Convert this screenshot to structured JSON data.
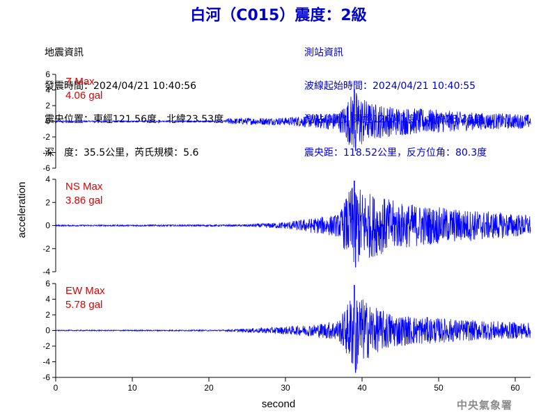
{
  "title": "白河（C015）震度：2級",
  "quake_info": {
    "heading": "地震資訊",
    "origin_time": "發震時間：2024/04/21 10:40:56",
    "epicenter": "震央位置：東經121.56度，北緯23.53度",
    "depth_magnitude": "深　度：35.5公里，芮氏規模：5.6"
  },
  "station_info": {
    "heading": "測站資訊",
    "arrival_time": "波線起始時間：2024/04/21 10:40:55",
    "station_location": "測站位置：東經120.41度，北緯23.35度",
    "distance_azimuth": "震央距：118.52公里，反方位角：80.3度"
  },
  "agency": "中央氣象署",
  "chart_data": {
    "type": "line",
    "xlabel": "second",
    "ylabel": "acceleration",
    "xlim": [
      0,
      62
    ],
    "x_ticks": [
      0,
      10,
      20,
      30,
      40,
      50,
      60
    ],
    "line_color": "#0000ff",
    "label_color": "#dd0000",
    "panels": [
      {
        "component": "Z",
        "label": "Z Max",
        "max_text": "4.06 gal",
        "max": 4.06,
        "ylim": [
          -6,
          6
        ],
        "y_ticks": [
          6,
          4,
          2,
          0,
          -2,
          -4,
          -6
        ],
        "envelope": [
          [
            0,
            0.08
          ],
          [
            22,
            0.08
          ],
          [
            22.5,
            0.4
          ],
          [
            30,
            0.5
          ],
          [
            34,
            0.9
          ],
          [
            37,
            1.2
          ],
          [
            38,
            2.6
          ],
          [
            39,
            4.06
          ],
          [
            40,
            3.2
          ],
          [
            41,
            2.4
          ],
          [
            44,
            1.9
          ],
          [
            48,
            1.6
          ],
          [
            55,
            1.1
          ],
          [
            62,
            0.9
          ]
        ]
      },
      {
        "component": "NS",
        "label": "NS Max",
        "max_text": "3.86 gal",
        "max": 3.86,
        "ylim": [
          -4,
          4
        ],
        "y_ticks": [
          4,
          2,
          0,
          -2,
          -4
        ],
        "envelope": [
          [
            0,
            0.06
          ],
          [
            24,
            0.08
          ],
          [
            26,
            0.15
          ],
          [
            30,
            0.3
          ],
          [
            34,
            0.7
          ],
          [
            37,
            1.0
          ],
          [
            38,
            2.6
          ],
          [
            39,
            3.86
          ],
          [
            40,
            3.1
          ],
          [
            42,
            2.6
          ],
          [
            45,
            2.0
          ],
          [
            50,
            1.6
          ],
          [
            55,
            1.3
          ],
          [
            62,
            0.9
          ]
        ]
      },
      {
        "component": "EW",
        "label": "EW Max",
        "max_text": "5.78 gal",
        "max": 5.78,
        "ylim": [
          -6,
          6
        ],
        "y_ticks": [
          6,
          4,
          2,
          0,
          -2,
          -4,
          -6
        ],
        "envelope": [
          [
            0,
            0.06
          ],
          [
            22,
            0.08
          ],
          [
            24,
            0.2
          ],
          [
            30,
            0.5
          ],
          [
            34,
            0.8
          ],
          [
            37,
            1.4
          ],
          [
            38,
            3.2
          ],
          [
            39,
            5.78
          ],
          [
            40,
            4.2
          ],
          [
            42,
            2.8
          ],
          [
            45,
            2.0
          ],
          [
            50,
            1.6
          ],
          [
            55,
            1.3
          ],
          [
            62,
            1.0
          ]
        ]
      }
    ]
  }
}
